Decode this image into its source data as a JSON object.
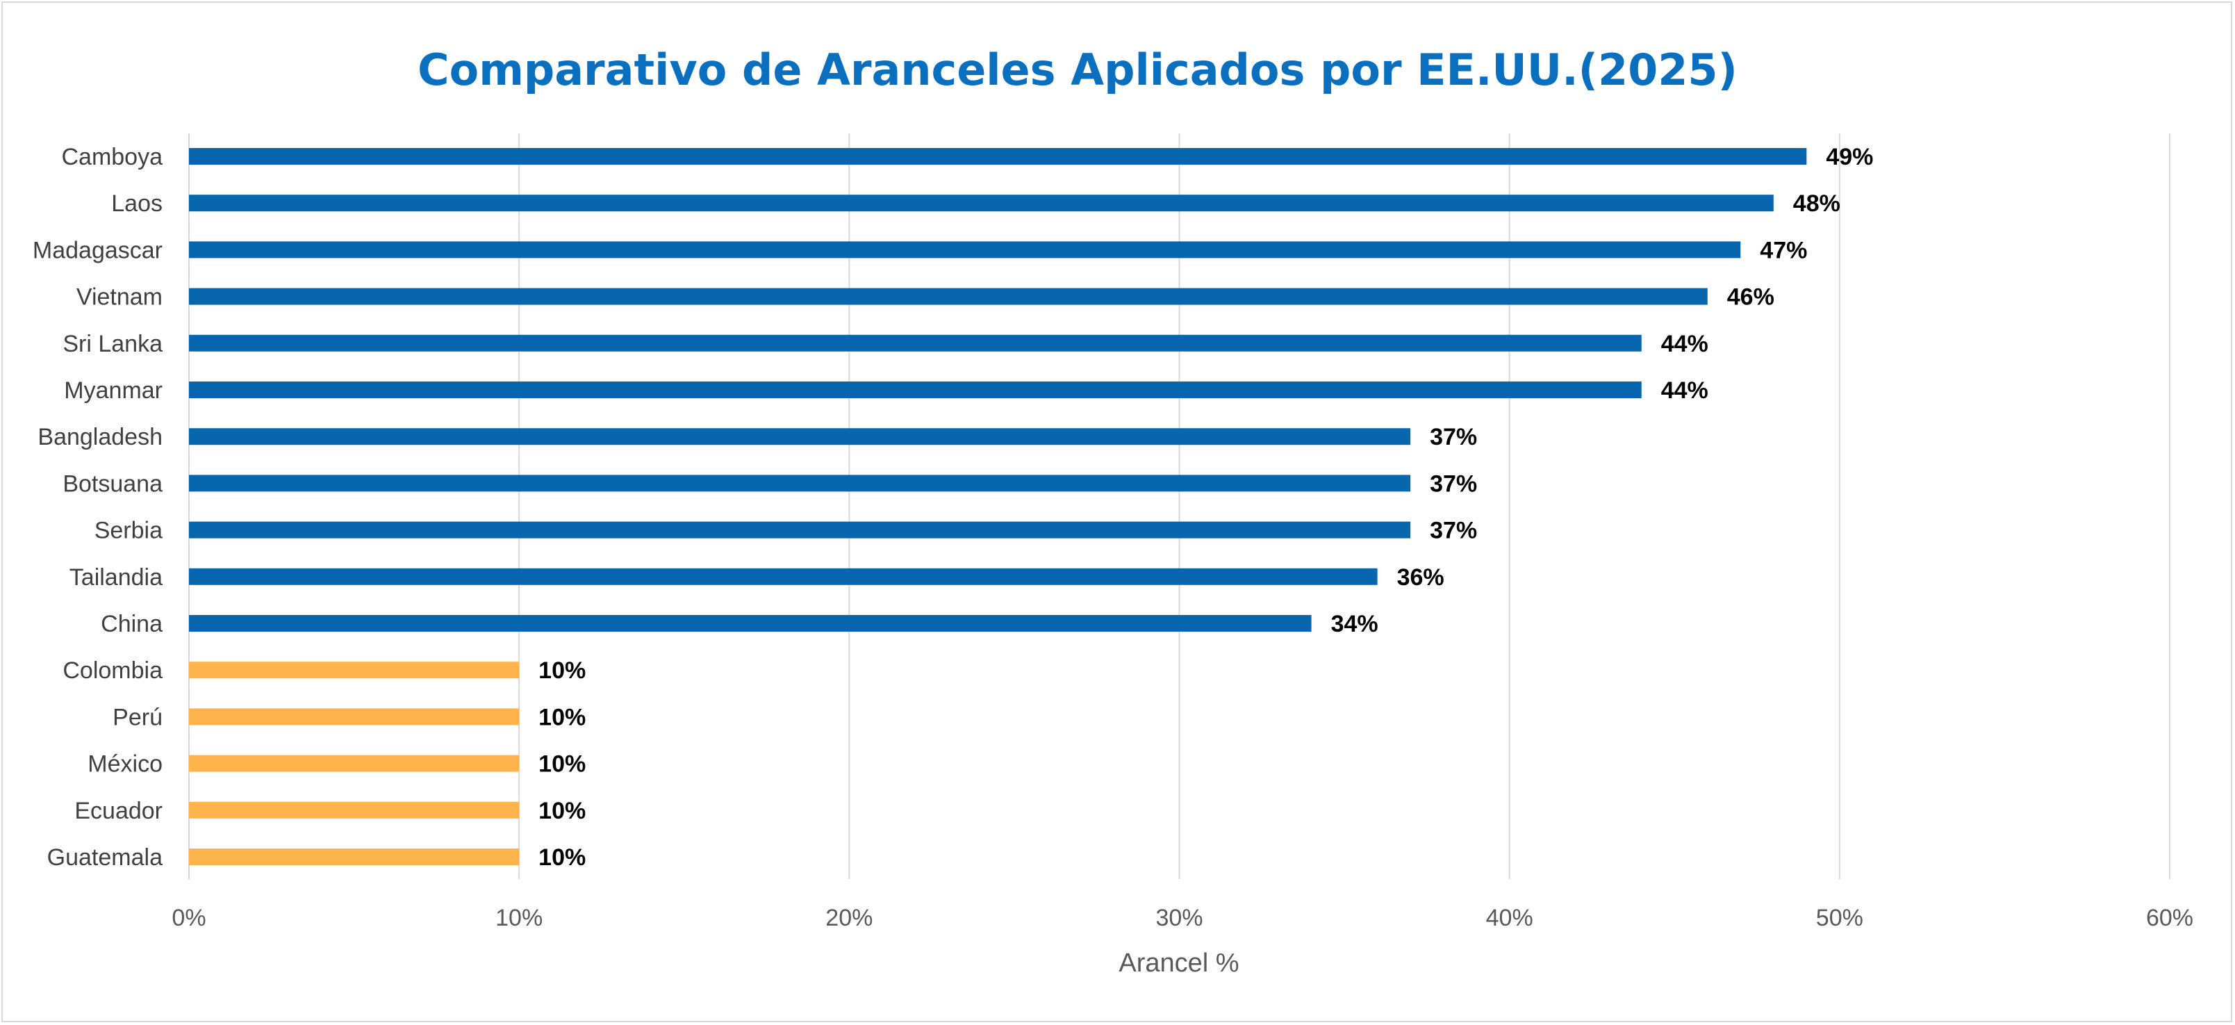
{
  "chart_data": {
    "type": "bar",
    "orientation": "horizontal",
    "title": "Comparativo de Aranceles Aplicados por EE.UU.(2025)",
    "xlabel": "Arancel %",
    "ylabel": "",
    "xlim": [
      0,
      60
    ],
    "ticks": [
      0,
      10,
      20,
      30,
      40,
      50,
      60
    ],
    "tick_labels": [
      "0%",
      "10%",
      "20%",
      "30%",
      "40%",
      "50%",
      "60%"
    ],
    "grid": "vertical",
    "legend": "none",
    "categories": [
      "Camboya",
      "Laos",
      "Madagascar",
      "Vietnam",
      "Sri Lanka",
      "Myanmar",
      "Bangladesh",
      "Botsuana",
      "Serbia",
      "Tailandia",
      "China",
      "Colombia",
      "Perú",
      "México",
      "Ecuador",
      "Guatemala"
    ],
    "values": [
      49,
      48,
      47,
      46,
      44,
      44,
      37,
      37,
      37,
      36,
      34,
      10,
      10,
      10,
      10,
      10
    ],
    "data_labels": [
      "49%",
      "48%",
      "47%",
      "46%",
      "44%",
      "44%",
      "37%",
      "37%",
      "37%",
      "36%",
      "34%",
      "10%",
      "10%",
      "10%",
      "10%",
      "10%"
    ],
    "bar_colors": [
      "#0766ad",
      "#0766ad",
      "#0766ad",
      "#0766ad",
      "#0766ad",
      "#0766ad",
      "#0766ad",
      "#0766ad",
      "#0766ad",
      "#0766ad",
      "#0766ad",
      "#ffb34d",
      "#ffb34d",
      "#ffb34d",
      "#ffb34d",
      "#ffb34d"
    ]
  },
  "colors": {
    "title": "#0a6fbf",
    "primary_bar": "#0766ad",
    "highlight_bar": "#ffb34d",
    "grid": "#d9d9d9",
    "frame": "#d9d9d9"
  }
}
